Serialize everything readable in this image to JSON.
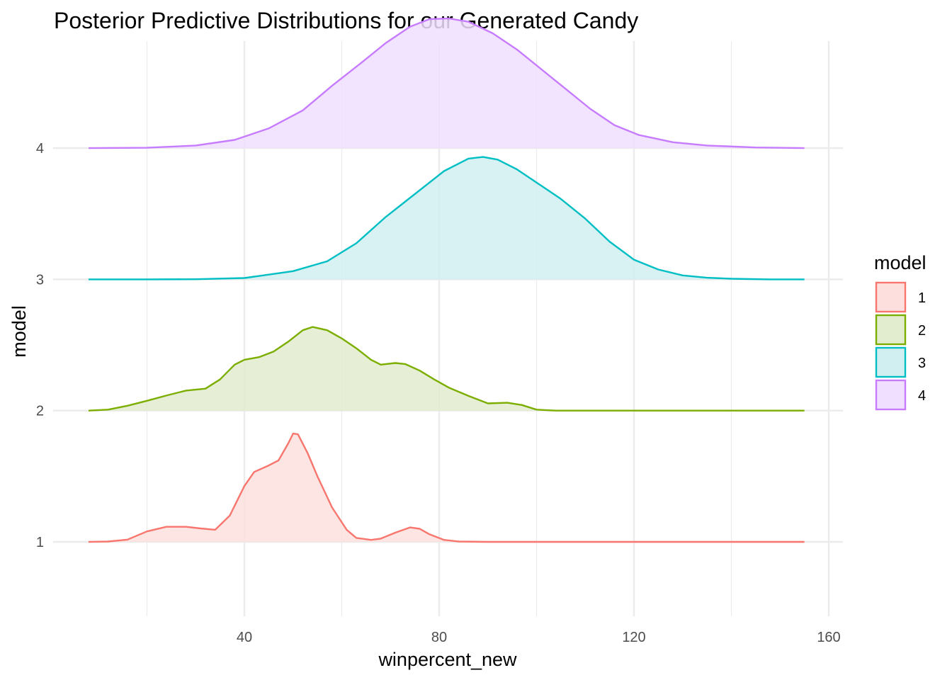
{
  "chart_data": {
    "type": "ridgeline-density",
    "title": "Posterior Predictive Distributions for our Generated Candy",
    "xlabel": "winpercent_new",
    "ylabel": "model",
    "x_ticks": [
      40,
      80,
      120,
      160
    ],
    "y_ticks": [
      "1",
      "2",
      "3",
      "4"
    ],
    "xlim": [
      14,
      164
    ],
    "grid": true,
    "legend": {
      "title": "model",
      "position": "right"
    },
    "series": [
      {
        "name": "1",
        "color": "#F8766D",
        "fill": "#fde0de",
        "points": [
          [
            8,
            0
          ],
          [
            12,
            0.01
          ],
          [
            16,
            0.07
          ],
          [
            20,
            0.32
          ],
          [
            24,
            0.46
          ],
          [
            28,
            0.46
          ],
          [
            31,
            0.41
          ],
          [
            34,
            0.37
          ],
          [
            37,
            0.8
          ],
          [
            40,
            1.7
          ],
          [
            42,
            2.13
          ],
          [
            45,
            2.33
          ],
          [
            47,
            2.48
          ],
          [
            49,
            3.0
          ],
          [
            50,
            3.3
          ],
          [
            51,
            3.28
          ],
          [
            53,
            2.7
          ],
          [
            55,
            2.0
          ],
          [
            58,
            1.05
          ],
          [
            61,
            0.37
          ],
          [
            63,
            0.12
          ],
          [
            66,
            0.06
          ],
          [
            68,
            0.1
          ],
          [
            71,
            0.28
          ],
          [
            74,
            0.44
          ],
          [
            76,
            0.4
          ],
          [
            78,
            0.23
          ],
          [
            81,
            0.06
          ],
          [
            84,
            0.01
          ],
          [
            90,
            0
          ],
          [
            100,
            0
          ],
          [
            120,
            0
          ],
          [
            140,
            0
          ],
          [
            155,
            0
          ]
        ]
      },
      {
        "name": "2",
        "color": "#7CAE00",
        "fill": "#e2ecce",
        "points": [
          [
            8,
            0
          ],
          [
            12,
            0.03
          ],
          [
            16,
            0.15
          ],
          [
            20,
            0.3
          ],
          [
            24,
            0.46
          ],
          [
            28,
            0.61
          ],
          [
            32,
            0.67
          ],
          [
            35,
            0.95
          ],
          [
            38,
            1.4
          ],
          [
            40,
            1.55
          ],
          [
            43,
            1.63
          ],
          [
            46,
            1.8
          ],
          [
            49,
            2.1
          ],
          [
            52,
            2.45
          ],
          [
            54,
            2.55
          ],
          [
            57,
            2.45
          ],
          [
            60,
            2.2
          ],
          [
            63,
            1.9
          ],
          [
            66,
            1.55
          ],
          [
            68,
            1.4
          ],
          [
            71,
            1.45
          ],
          [
            73,
            1.42
          ],
          [
            76,
            1.22
          ],
          [
            79,
            0.95
          ],
          [
            82,
            0.7
          ],
          [
            86,
            0.45
          ],
          [
            90,
            0.22
          ],
          [
            94,
            0.24
          ],
          [
            97,
            0.17
          ],
          [
            100,
            0.03
          ],
          [
            104,
            0
          ],
          [
            120,
            0
          ],
          [
            140,
            0
          ],
          [
            155,
            0
          ]
        ]
      },
      {
        "name": "3",
        "color": "#00BFC4",
        "fill": "#d1eff0",
        "points": [
          [
            8,
            0
          ],
          [
            20,
            0
          ],
          [
            30,
            0.005
          ],
          [
            40,
            0.04
          ],
          [
            50,
            0.25
          ],
          [
            57,
            0.55
          ],
          [
            63,
            1.1
          ],
          [
            69,
            1.9
          ],
          [
            75,
            2.6
          ],
          [
            81,
            3.3
          ],
          [
            86,
            3.68
          ],
          [
            89,
            3.73
          ],
          [
            92,
            3.65
          ],
          [
            96,
            3.35
          ],
          [
            100,
            2.95
          ],
          [
            105,
            2.45
          ],
          [
            110,
            1.85
          ],
          [
            115,
            1.15
          ],
          [
            120,
            0.6
          ],
          [
            125,
            0.3
          ],
          [
            130,
            0.12
          ],
          [
            135,
            0.05
          ],
          [
            140,
            0.02
          ],
          [
            148,
            0
          ],
          [
            155,
            0
          ]
        ]
      },
      {
        "name": "4",
        "color": "#C77CFF",
        "fill": "#f0dfff",
        "points": [
          [
            8,
            0
          ],
          [
            20,
            0.01
          ],
          [
            30,
            0.08
          ],
          [
            38,
            0.25
          ],
          [
            45,
            0.6
          ],
          [
            52,
            1.15
          ],
          [
            58,
            1.9
          ],
          [
            64,
            2.6
          ],
          [
            69,
            3.2
          ],
          [
            74,
            3.7
          ],
          [
            78,
            3.93
          ],
          [
            82,
            3.95
          ],
          [
            86,
            3.85
          ],
          [
            91,
            3.5
          ],
          [
            96,
            3.0
          ],
          [
            101,
            2.4
          ],
          [
            106,
            1.8
          ],
          [
            111,
            1.2
          ],
          [
            116,
            0.7
          ],
          [
            121,
            0.4
          ],
          [
            128,
            0.18
          ],
          [
            135,
            0.08
          ],
          [
            145,
            0.02
          ],
          [
            155,
            0
          ]
        ]
      }
    ]
  }
}
